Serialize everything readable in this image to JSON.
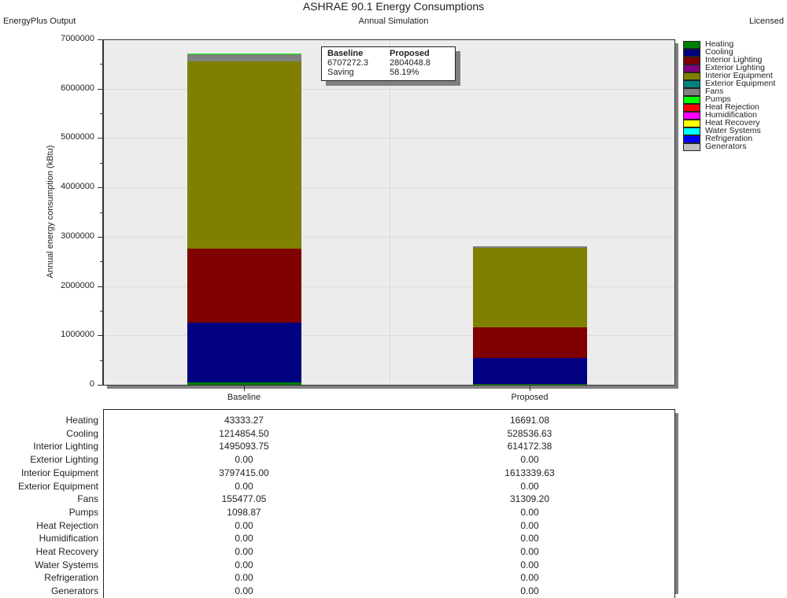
{
  "header": {
    "title": "ASHRAE 90.1 Energy Consumptions",
    "subtitle": "Annual Simulation",
    "left_label": "EnergyPlus Output",
    "right_label": "Licensed"
  },
  "summary_box": {
    "col1_header": "Baseline",
    "col2_header": "Proposed",
    "baseline_total": "6707272.3",
    "proposed_total": "2804048.8",
    "saving_label": "Saving",
    "saving_value": "58.19%"
  },
  "chart_data": {
    "type": "bar",
    "stacked": true,
    "title": "ASHRAE 90.1 Energy Consumptions",
    "subtitle": "Annual Simulation",
    "xlabel": "",
    "ylabel": "Annual energy consumption (kBtu)",
    "ylim": [
      0,
      7000000
    ],
    "yticks": [
      "7000000",
      "6000000",
      "5000000",
      "4000000",
      "3000000",
      "2000000",
      "1000000",
      "0"
    ],
    "grid": true,
    "legend_position": "right",
    "categories": [
      "Baseline",
      "Proposed"
    ],
    "series": [
      {
        "name": "Heating",
        "color": "#008000",
        "values": [
          43333.27,
          16691.08
        ]
      },
      {
        "name": "Cooling",
        "color": "#000080",
        "values": [
          1214854.5,
          528536.63
        ]
      },
      {
        "name": "Interior Lighting",
        "color": "#800000",
        "values": [
          1495093.75,
          614172.38
        ]
      },
      {
        "name": "Exterior Lighting",
        "color": "#800080",
        "values": [
          0.0,
          0.0
        ]
      },
      {
        "name": "Interior Equipment",
        "color": "#808000",
        "values": [
          3797415.0,
          1613339.63
        ]
      },
      {
        "name": "Exterior Equipment",
        "color": "#008080",
        "values": [
          0.0,
          0.0
        ]
      },
      {
        "name": "Fans",
        "color": "#808080",
        "values": [
          155477.05,
          31309.2
        ]
      },
      {
        "name": "Pumps",
        "color": "#00ff00",
        "values": [
          1098.87,
          0.0
        ]
      },
      {
        "name": "Heat Rejection",
        "color": "#ff0000",
        "values": [
          0.0,
          0.0
        ]
      },
      {
        "name": "Humidification",
        "color": "#ff00ff",
        "values": [
          0.0,
          0.0
        ]
      },
      {
        "name": "Heat Recovery",
        "color": "#ffff00",
        "values": [
          0.0,
          0.0
        ]
      },
      {
        "name": "Water Systems",
        "color": "#00ffff",
        "values": [
          0.0,
          0.0
        ]
      },
      {
        "name": "Refrigeration",
        "color": "#0000ff",
        "values": [
          0.0,
          0.0
        ]
      },
      {
        "name": "Generators",
        "color": "#c0c0c0",
        "values": [
          0.0,
          0.0
        ]
      }
    ],
    "totals": {
      "Baseline": 6707272.3,
      "Proposed": 2804048.8
    },
    "saving_percent": 58.19
  },
  "table": {
    "rows": [
      {
        "label": "Heating",
        "baseline": "43333.27",
        "proposed": "16691.08"
      },
      {
        "label": "Cooling",
        "baseline": "1214854.50",
        "proposed": "528536.63"
      },
      {
        "label": "Interior Lighting",
        "baseline": "1495093.75",
        "proposed": "614172.38"
      },
      {
        "label": "Exterior Lighting",
        "baseline": "0.00",
        "proposed": "0.00"
      },
      {
        "label": "Interior Equipment",
        "baseline": "3797415.00",
        "proposed": "1613339.63"
      },
      {
        "label": "Exterior Equipment",
        "baseline": "0.00",
        "proposed": "0.00"
      },
      {
        "label": "Fans",
        "baseline": "155477.05",
        "proposed": "31309.20"
      },
      {
        "label": "Pumps",
        "baseline": "1098.87",
        "proposed": "0.00"
      },
      {
        "label": "Heat Rejection",
        "baseline": "0.00",
        "proposed": "0.00"
      },
      {
        "label": "Humidification",
        "baseline": "0.00",
        "proposed": "0.00"
      },
      {
        "label": "Heat Recovery",
        "baseline": "0.00",
        "proposed": "0.00"
      },
      {
        "label": "Water Systems",
        "baseline": "0.00",
        "proposed": "0.00"
      },
      {
        "label": "Refrigeration",
        "baseline": "0.00",
        "proposed": "0.00"
      },
      {
        "label": "Generators",
        "baseline": "0.00",
        "proposed": "0.00"
      }
    ]
  }
}
